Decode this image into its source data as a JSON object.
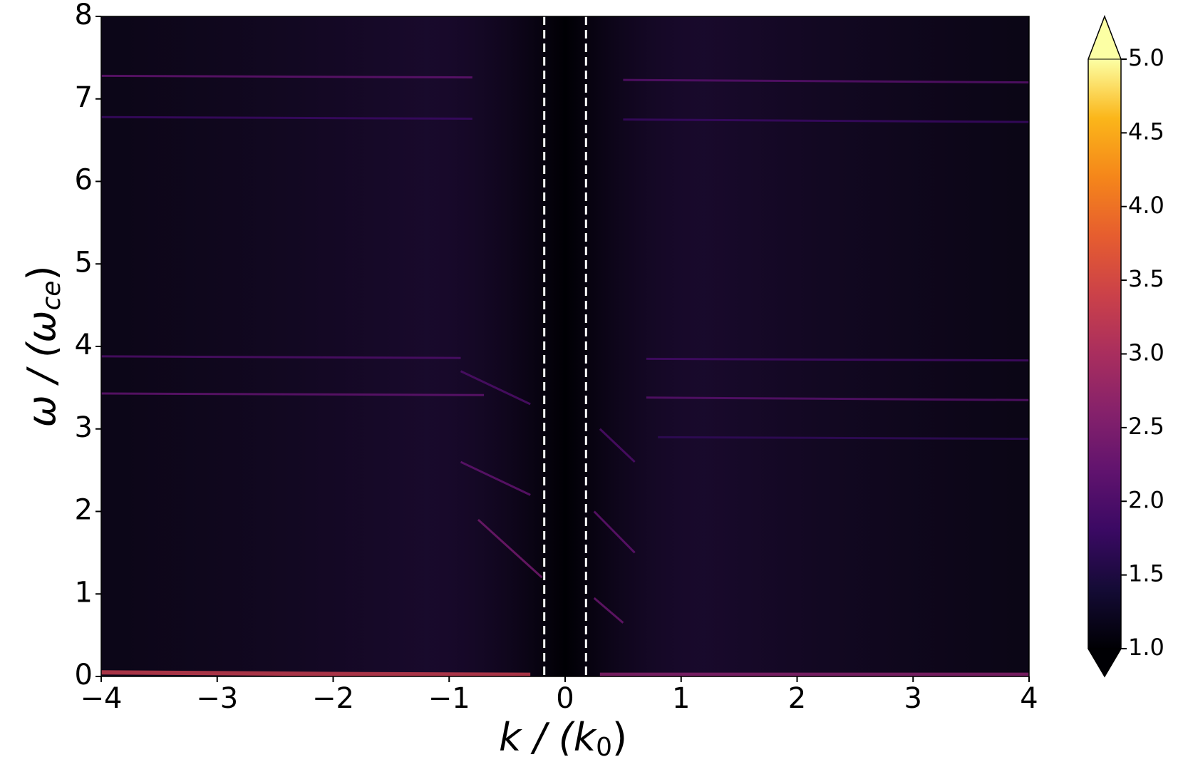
{
  "chart_data": {
    "type": "heatmap",
    "xlabel": [
      "k / (k",
      "0",
      ")"
    ],
    "ylabel": [
      "ω / (ω",
      "ce",
      ")"
    ],
    "xlim": [
      -4,
      4
    ],
    "ylim": [
      0,
      8
    ],
    "xticks": [
      {
        "value": -4,
        "label": "−4"
      },
      {
        "value": -3,
        "label": "−3"
      },
      {
        "value": -2,
        "label": "−2"
      },
      {
        "value": -1,
        "label": "−1"
      },
      0,
      1,
      2,
      3,
      4
    ],
    "yticks": [
      0,
      1,
      2,
      3,
      4,
      5,
      6,
      7,
      8
    ],
    "colormap": "inferno",
    "clim": [
      1,
      5
    ],
    "cticks": [
      {
        "value": 1,
        "label": "1.0"
      },
      {
        "value": 1.5,
        "label": "1.5"
      },
      {
        "value": 2,
        "label": "2.0"
      },
      {
        "value": 2.5,
        "label": "2.5"
      },
      {
        "value": 3,
        "label": "3.0"
      },
      {
        "value": 3.5,
        "label": "3.5"
      },
      {
        "value": 4,
        "label": "4.0"
      },
      {
        "value": 4.5,
        "label": "4.5"
      },
      {
        "value": 5,
        "label": "5.0"
      }
    ],
    "extend": "both",
    "boundaries": [
      -0.18,
      0.18
    ],
    "features": [
      {
        "k": [
          -4,
          -2,
          -0.3
        ],
        "omega": [
          0.05,
          0.03,
          0.02
        ],
        "level": 3.3
      },
      {
        "k": [
          0.3,
          4
        ],
        "omega": [
          0.02,
          0.02
        ],
        "level": 2.6
      },
      {
        "k": [
          -4,
          -0.8
        ],
        "omega": [
          7.28,
          7.26
        ],
        "level": 2.2
      },
      {
        "k": [
          0.5,
          4
        ],
        "omega": [
          7.23,
          7.2
        ],
        "level": 2.1
      },
      {
        "k": [
          -4,
          -0.8
        ],
        "omega": [
          6.78,
          6.76
        ],
        "level": 1.8
      },
      {
        "k": [
          0.5,
          4
        ],
        "omega": [
          6.75,
          6.72
        ],
        "level": 1.8
      },
      {
        "k": [
          -4,
          -0.9
        ],
        "omega": [
          3.88,
          3.86
        ],
        "level": 2.0
      },
      {
        "k": [
          0.7,
          4
        ],
        "omega": [
          3.85,
          3.83
        ],
        "level": 1.9
      },
      {
        "k": [
          -4,
          -0.7
        ],
        "omega": [
          3.43,
          3.41
        ],
        "level": 2.2
      },
      {
        "k": [
          0.7,
          4
        ],
        "omega": [
          3.38,
          3.35
        ],
        "level": 2.1
      },
      {
        "k": [
          0.8,
          4
        ],
        "omega": [
          2.9,
          2.88
        ],
        "level": 1.7
      },
      {
        "k": [
          -0.2,
          -0.75
        ],
        "omega": [
          1.2,
          1.9
        ],
        "level": 2.4
      },
      {
        "k": [
          -0.3,
          -0.9
        ],
        "omega": [
          2.2,
          2.6
        ],
        "level": 2.2
      },
      {
        "k": [
          -0.3,
          -0.9
        ],
        "omega": [
          3.3,
          3.7
        ],
        "level": 2.0
      },
      {
        "k": [
          0.25,
          0.5
        ],
        "omega": [
          0.95,
          0.65
        ],
        "level": 2.3
      },
      {
        "k": [
          0.25,
          0.6
        ],
        "omega": [
          2.0,
          1.5
        ],
        "level": 2.2
      },
      {
        "k": [
          0.3,
          0.6
        ],
        "omega": [
          3.0,
          2.6
        ],
        "level": 2.0
      }
    ]
  }
}
